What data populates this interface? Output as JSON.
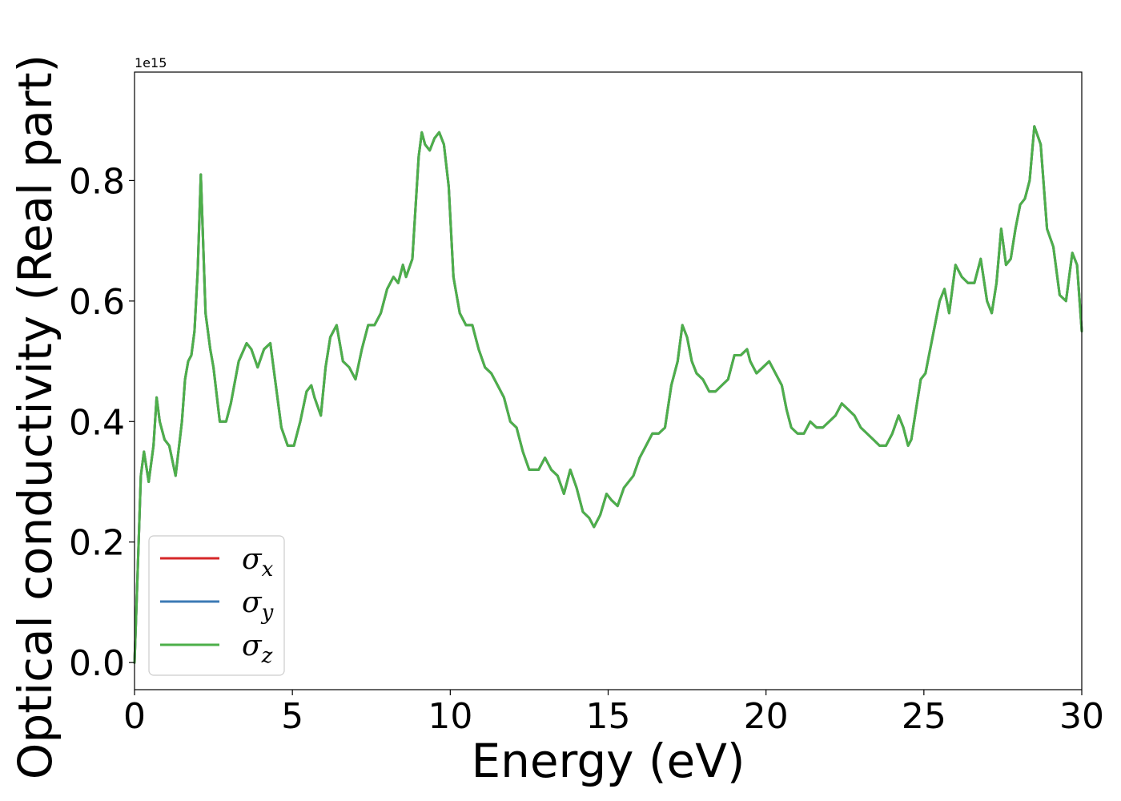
{
  "chart_data": {
    "type": "line",
    "title": "",
    "xlabel": "Energy (eV)",
    "ylabel": "Optical conductivity (Real part)",
    "y_offset_label": "1e15",
    "xlim": [
      0,
      30
    ],
    "ylim": [
      -0.045,
      0.98
    ],
    "x_ticks": [
      0,
      5,
      10,
      15,
      20,
      25,
      30
    ],
    "x_tick_labels": [
      "0",
      "5",
      "10",
      "15",
      "20",
      "25",
      "30"
    ],
    "y_ticks": [
      0.0,
      0.2,
      0.4,
      0.6,
      0.8
    ],
    "y_tick_labels": [
      "0.0",
      "0.2",
      "0.4",
      "0.6",
      "0.8"
    ],
    "grid": false,
    "legend_position": "lower-left",
    "x": [
      0,
      0.1,
      0.2,
      0.3,
      0.45,
      0.6,
      0.7,
      0.8,
      0.95,
      1.1,
      1.3,
      1.5,
      1.6,
      1.7,
      1.8,
      1.9,
      2.0,
      2.1,
      2.25,
      2.4,
      2.5,
      2.7,
      2.9,
      3.05,
      3.3,
      3.55,
      3.7,
      3.9,
      4.1,
      4.3,
      4.45,
      4.65,
      4.85,
      5.05,
      5.25,
      5.45,
      5.6,
      5.7,
      5.9,
      6.05,
      6.2,
      6.4,
      6.6,
      6.8,
      7.0,
      7.2,
      7.4,
      7.6,
      7.8,
      8.0,
      8.2,
      8.35,
      8.5,
      8.6,
      8.8,
      9.0,
      9.1,
      9.2,
      9.35,
      9.5,
      9.65,
      9.8,
      9.95,
      10.1,
      10.3,
      10.5,
      10.7,
      10.9,
      11.1,
      11.3,
      11.5,
      11.7,
      11.9,
      12.1,
      12.3,
      12.5,
      12.8,
      13.0,
      13.2,
      13.4,
      13.6,
      13.8,
      14.0,
      14.2,
      14.4,
      14.55,
      14.75,
      14.95,
      15.1,
      15.3,
      15.5,
      15.65,
      15.8,
      16.0,
      16.2,
      16.4,
      16.6,
      16.8,
      17.0,
      17.2,
      17.35,
      17.5,
      17.65,
      17.8,
      18.0,
      18.2,
      18.4,
      18.6,
      18.8,
      19.0,
      19.2,
      19.4,
      19.5,
      19.7,
      19.9,
      20.1,
      20.3,
      20.5,
      20.65,
      20.8,
      21.0,
      21.2,
      21.4,
      21.6,
      21.8,
      22.0,
      22.2,
      22.4,
      22.6,
      22.8,
      23.0,
      23.2,
      23.4,
      23.6,
      23.8,
      24.0,
      24.2,
      24.35,
      24.5,
      24.6,
      24.75,
      24.9,
      25.05,
      25.2,
      25.35,
      25.5,
      25.65,
      25.8,
      26.0,
      26.2,
      26.4,
      26.6,
      26.8,
      27.0,
      27.15,
      27.3,
      27.45,
      27.6,
      27.75,
      27.9,
      28.05,
      28.2,
      28.35,
      28.5,
      28.7,
      28.9,
      29.1,
      29.3,
      29.5,
      29.7,
      29.85,
      30.0
    ],
    "series": [
      {
        "name": "σx",
        "color": "#d62728",
        "values": [
          0.0,
          0.15,
          0.31,
          0.35,
          0.3,
          0.36,
          0.44,
          0.4,
          0.37,
          0.36,
          0.31,
          0.4,
          0.47,
          0.5,
          0.51,
          0.55,
          0.65,
          0.81,
          0.58,
          0.52,
          0.49,
          0.4,
          0.4,
          0.43,
          0.5,
          0.53,
          0.52,
          0.49,
          0.52,
          0.53,
          0.47,
          0.39,
          0.36,
          0.36,
          0.4,
          0.45,
          0.46,
          0.44,
          0.41,
          0.49,
          0.54,
          0.56,
          0.5,
          0.49,
          0.47,
          0.52,
          0.56,
          0.56,
          0.58,
          0.62,
          0.64,
          0.63,
          0.66,
          0.64,
          0.67,
          0.84,
          0.88,
          0.86,
          0.85,
          0.87,
          0.88,
          0.86,
          0.79,
          0.64,
          0.58,
          0.56,
          0.56,
          0.52,
          0.49,
          0.48,
          0.46,
          0.44,
          0.4,
          0.39,
          0.35,
          0.32,
          0.32,
          0.34,
          0.32,
          0.31,
          0.28,
          0.32,
          0.29,
          0.25,
          0.24,
          0.225,
          0.245,
          0.28,
          0.27,
          0.26,
          0.29,
          0.3,
          0.31,
          0.34,
          0.36,
          0.38,
          0.38,
          0.39,
          0.46,
          0.5,
          0.56,
          0.54,
          0.5,
          0.48,
          0.47,
          0.45,
          0.45,
          0.46,
          0.47,
          0.51,
          0.51,
          0.52,
          0.5,
          0.48,
          0.49,
          0.5,
          0.48,
          0.46,
          0.42,
          0.39,
          0.38,
          0.38,
          0.4,
          0.39,
          0.39,
          0.4,
          0.41,
          0.43,
          0.42,
          0.41,
          0.39,
          0.38,
          0.37,
          0.36,
          0.36,
          0.38,
          0.41,
          0.39,
          0.36,
          0.37,
          0.42,
          0.47,
          0.48,
          0.52,
          0.56,
          0.6,
          0.62,
          0.58,
          0.66,
          0.64,
          0.63,
          0.63,
          0.67,
          0.6,
          0.58,
          0.63,
          0.72,
          0.66,
          0.67,
          0.72,
          0.76,
          0.77,
          0.8,
          0.89,
          0.86,
          0.72,
          0.69,
          0.61,
          0.6,
          0.68,
          0.66,
          0.55
        ]
      },
      {
        "name": "σy",
        "color": "#3c7ab5",
        "values": [
          0.0,
          0.15,
          0.31,
          0.35,
          0.3,
          0.36,
          0.44,
          0.4,
          0.37,
          0.36,
          0.31,
          0.4,
          0.47,
          0.5,
          0.51,
          0.55,
          0.65,
          0.81,
          0.58,
          0.52,
          0.49,
          0.4,
          0.4,
          0.43,
          0.5,
          0.53,
          0.52,
          0.49,
          0.52,
          0.53,
          0.47,
          0.39,
          0.36,
          0.36,
          0.4,
          0.45,
          0.46,
          0.44,
          0.41,
          0.49,
          0.54,
          0.56,
          0.5,
          0.49,
          0.47,
          0.52,
          0.56,
          0.56,
          0.58,
          0.62,
          0.64,
          0.63,
          0.66,
          0.64,
          0.67,
          0.84,
          0.88,
          0.86,
          0.85,
          0.87,
          0.88,
          0.86,
          0.79,
          0.64,
          0.58,
          0.56,
          0.56,
          0.52,
          0.49,
          0.48,
          0.46,
          0.44,
          0.4,
          0.39,
          0.35,
          0.32,
          0.32,
          0.34,
          0.32,
          0.31,
          0.28,
          0.32,
          0.29,
          0.25,
          0.24,
          0.225,
          0.245,
          0.28,
          0.27,
          0.26,
          0.29,
          0.3,
          0.31,
          0.34,
          0.36,
          0.38,
          0.38,
          0.39,
          0.46,
          0.5,
          0.56,
          0.54,
          0.5,
          0.48,
          0.47,
          0.45,
          0.45,
          0.46,
          0.47,
          0.51,
          0.51,
          0.52,
          0.5,
          0.48,
          0.49,
          0.5,
          0.48,
          0.46,
          0.42,
          0.39,
          0.38,
          0.38,
          0.4,
          0.39,
          0.39,
          0.4,
          0.41,
          0.43,
          0.42,
          0.41,
          0.39,
          0.38,
          0.37,
          0.36,
          0.36,
          0.38,
          0.41,
          0.39,
          0.36,
          0.37,
          0.42,
          0.47,
          0.48,
          0.52,
          0.56,
          0.6,
          0.62,
          0.58,
          0.66,
          0.64,
          0.63,
          0.63,
          0.67,
          0.6,
          0.58,
          0.63,
          0.72,
          0.66,
          0.67,
          0.72,
          0.76,
          0.77,
          0.8,
          0.89,
          0.86,
          0.72,
          0.69,
          0.61,
          0.6,
          0.68,
          0.66,
          0.55
        ]
      },
      {
        "name": "σz",
        "color": "#4daf4a",
        "values": [
          0.0,
          0.15,
          0.31,
          0.35,
          0.3,
          0.36,
          0.44,
          0.4,
          0.37,
          0.36,
          0.31,
          0.4,
          0.47,
          0.5,
          0.51,
          0.55,
          0.65,
          0.81,
          0.58,
          0.52,
          0.49,
          0.4,
          0.4,
          0.43,
          0.5,
          0.53,
          0.52,
          0.49,
          0.52,
          0.53,
          0.47,
          0.39,
          0.36,
          0.36,
          0.4,
          0.45,
          0.46,
          0.44,
          0.41,
          0.49,
          0.54,
          0.56,
          0.5,
          0.49,
          0.47,
          0.52,
          0.56,
          0.56,
          0.58,
          0.62,
          0.64,
          0.63,
          0.66,
          0.64,
          0.67,
          0.84,
          0.88,
          0.86,
          0.85,
          0.87,
          0.88,
          0.86,
          0.79,
          0.64,
          0.58,
          0.56,
          0.56,
          0.52,
          0.49,
          0.48,
          0.46,
          0.44,
          0.4,
          0.39,
          0.35,
          0.32,
          0.32,
          0.34,
          0.32,
          0.31,
          0.28,
          0.32,
          0.29,
          0.25,
          0.24,
          0.225,
          0.245,
          0.28,
          0.27,
          0.26,
          0.29,
          0.3,
          0.31,
          0.34,
          0.36,
          0.38,
          0.38,
          0.39,
          0.46,
          0.5,
          0.56,
          0.54,
          0.5,
          0.48,
          0.47,
          0.45,
          0.45,
          0.46,
          0.47,
          0.51,
          0.51,
          0.52,
          0.5,
          0.48,
          0.49,
          0.5,
          0.48,
          0.46,
          0.42,
          0.39,
          0.38,
          0.38,
          0.4,
          0.39,
          0.39,
          0.4,
          0.41,
          0.43,
          0.42,
          0.41,
          0.39,
          0.38,
          0.37,
          0.36,
          0.36,
          0.38,
          0.41,
          0.39,
          0.36,
          0.37,
          0.42,
          0.47,
          0.48,
          0.52,
          0.56,
          0.6,
          0.62,
          0.58,
          0.66,
          0.64,
          0.63,
          0.63,
          0.67,
          0.6,
          0.58,
          0.63,
          0.72,
          0.66,
          0.67,
          0.72,
          0.76,
          0.77,
          0.8,
          0.89,
          0.86,
          0.72,
          0.69,
          0.61,
          0.6,
          0.68,
          0.66,
          0.55
        ]
      }
    ]
  }
}
